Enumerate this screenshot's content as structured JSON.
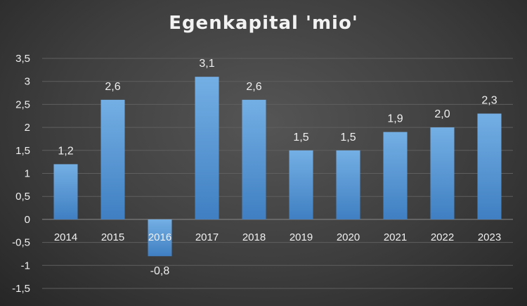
{
  "chart_data": {
    "type": "bar",
    "title": "Egenkapital 'mio'",
    "categories": [
      "2014",
      "2015",
      "2016",
      "2017",
      "2018",
      "2019",
      "2020",
      "2021",
      "2022",
      "2023"
    ],
    "values": [
      1.2,
      2.6,
      -0.8,
      3.1,
      2.6,
      1.5,
      1.5,
      1.9,
      2.0,
      2.3
    ],
    "data_labels": [
      "1,2",
      "2,6",
      "-0,8",
      "3,1",
      "2,6",
      "1,5",
      "1,5",
      "1,9",
      "2,0",
      "2,3"
    ],
    "ylim": [
      -1.5,
      3.5
    ],
    "y_ticks": [
      3.5,
      3,
      2.5,
      2,
      1.5,
      1,
      0.5,
      0,
      -0.5,
      -1,
      -1.5
    ],
    "y_tick_labels": [
      "3,5",
      "3",
      "2,5",
      "2",
      "1,5",
      "1",
      "0,5",
      "0",
      "-0,5",
      "-1",
      "-1,5"
    ],
    "grid": true,
    "bar_color": "#5b9bd5",
    "legend": "none"
  }
}
